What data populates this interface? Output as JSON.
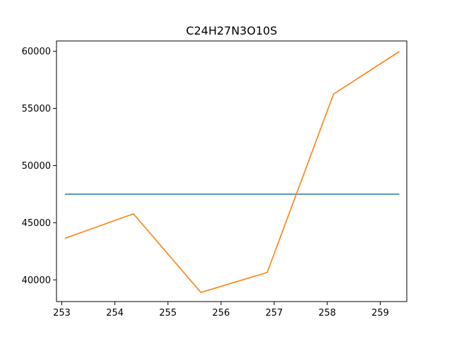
{
  "chart_data": {
    "type": "line",
    "title": "C24H27N3O10S",
    "xlabel": "",
    "ylabel": "",
    "xlim": [
      252.9,
      259.5
    ],
    "ylim": [
      38100,
      60900
    ],
    "x_ticks": [
      253,
      254,
      255,
      256,
      257,
      258,
      259
    ],
    "y_ticks": [
      40000,
      45000,
      50000,
      55000,
      60000
    ],
    "grid": false,
    "series": [
      {
        "color": "#1f77b4",
        "points": [
          [
            253.07,
            47500
          ],
          [
            259.35,
            47500
          ]
        ]
      },
      {
        "color": "#ff7f0e",
        "points": [
          [
            253.07,
            43650
          ],
          [
            254.35,
            45780
          ],
          [
            255.62,
            38900
          ],
          [
            256.87,
            40650
          ],
          [
            258.12,
            56250
          ],
          [
            259.35,
            59950
          ]
        ]
      }
    ]
  }
}
